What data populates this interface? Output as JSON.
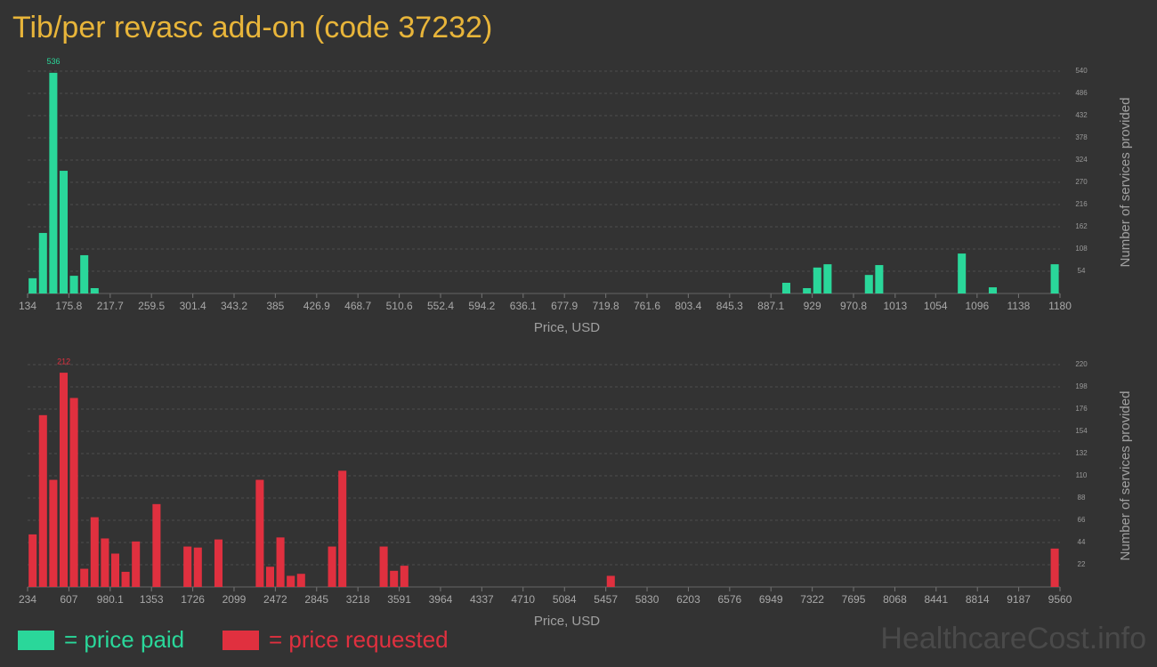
{
  "title": "Tib/per revasc add-on (code 37232)",
  "watermark": "HealthcareCost.info",
  "chart_data": [
    {
      "type": "histogram",
      "name": "= price paid",
      "color": "#2ad79a",
      "xlabel": "Price, USD",
      "ylabel": "Number of services provided",
      "grid": true,
      "bins": [
        134,
        144.46,
        154.92,
        165.38,
        175.84,
        186.3,
        196.76,
        207.22,
        217.68,
        228.14,
        238.6,
        249.06,
        259.52,
        269.98,
        280.44,
        290.9,
        301.36,
        311.82,
        322.28,
        332.74,
        343.2,
        353.66,
        364.12,
        374.58,
        385.04,
        395.5,
        405.96,
        416.42,
        426.88,
        437.34,
        447.8,
        458.26,
        468.72,
        479.18,
        489.64,
        500.1,
        510.56,
        521.02,
        531.48,
        541.94,
        552.4,
        562.86,
        573.32,
        583.78,
        594.24,
        604.7,
        615.16,
        625.62,
        636.08,
        646.54,
        657,
        667.46,
        677.92,
        688.38,
        698.84,
        709.3,
        719.76,
        730.22,
        740.68,
        751.14,
        761.6,
        772.06,
        782.52,
        792.98,
        803.44,
        813.9,
        824.36,
        834.82,
        845.28,
        855.74,
        866.2,
        876.66,
        887.12,
        897.58,
        908.04,
        918.5,
        928.96,
        939.42,
        949.88,
        960.34,
        970.8,
        981.26,
        991.72,
        1002.18,
        1012.64,
        1023.1,
        1033.56,
        1044.02,
        1054.48,
        1064.94,
        1075.4,
        1085.86,
        1096.32,
        1106.78,
        1117.24,
        1127.7,
        1138.16,
        1148.62,
        1159.08,
        1169.54,
        1180
      ],
      "values": [
        37,
        147,
        536,
        298,
        43,
        93,
        13,
        0,
        0,
        0,
        0,
        0,
        0,
        0,
        0,
        0,
        0,
        0,
        0,
        0,
        0,
        0,
        0,
        0,
        0,
        0,
        0,
        0,
        0,
        0,
        0,
        0,
        0,
        0,
        0,
        0,
        0,
        0,
        0,
        0,
        0,
        0,
        0,
        0,
        0,
        0,
        0,
        0,
        0,
        0,
        0,
        0,
        0,
        0,
        0,
        0,
        0,
        0,
        0,
        0,
        0,
        0,
        0,
        0,
        0,
        0,
        0,
        0,
        0,
        0,
        0,
        0,
        0,
        26,
        0,
        13,
        63,
        71,
        0,
        0,
        0,
        45,
        69,
        0,
        0,
        0,
        0,
        0,
        0,
        0,
        97,
        0,
        0,
        15,
        0,
        0,
        0,
        0,
        0,
        71
      ],
      "xlim": [
        134,
        1180
      ],
      "xticks": [
        134,
        175.8,
        217.7,
        259.5,
        301.4,
        343.2,
        385,
        426.9,
        468.7,
        510.6,
        552.4,
        594.2,
        636.1,
        677.9,
        719.8,
        761.6,
        803.4,
        845.3,
        887.1,
        929,
        970.8,
        1013,
        1054,
        1096,
        1138,
        1180
      ],
      "ylim": [
        0,
        540
      ],
      "yticks": [
        54,
        108,
        162,
        216,
        270,
        324,
        378,
        432,
        486,
        540
      ]
    },
    {
      "type": "histogram",
      "name": "= price requested",
      "color": "#e0303f",
      "xlabel": "Price, USD",
      "ylabel": "Number of services provided",
      "grid": true,
      "bins": [
        234,
        327.26,
        420.52,
        513.78,
        607.04,
        700.3,
        793.56,
        886.82,
        980.08,
        1073.34,
        1166.6,
        1259.86,
        1353.12,
        1446.38,
        1539.64,
        1632.9,
        1726.16,
        1819.42,
        1912.68,
        2005.94,
        2099.2,
        2192.46,
        2285.72,
        2378.98,
        2472.24,
        2565.5,
        2658.76,
        2752.02,
        2845.28,
        2938.54,
        3031.8,
        3125.06,
        3218.32,
        3311.58,
        3404.84,
        3498.1,
        3591.36,
        3684.62,
        3777.88,
        3871.14,
        3964.4,
        4057.66,
        4150.92,
        4244.18,
        4337.44,
        4430.7,
        4523.96,
        4617.22,
        4710.48,
        4803.74,
        4897,
        4990.26,
        5083.52,
        5176.78,
        5270.04,
        5363.3,
        5456.56,
        5549.82,
        5643.08,
        5736.34,
        5829.6,
        5922.86,
        6016.12,
        6109.38,
        6202.64,
        6295.9,
        6389.16,
        6482.42,
        6575.68,
        6668.94,
        6762.2,
        6855.46,
        6948.72,
        7041.98,
        7135.24,
        7228.5,
        7321.76,
        7415.02,
        7508.28,
        7601.54,
        7694.8,
        7788.06,
        7881.32,
        7974.58,
        8067.84,
        8161.1,
        8254.36,
        8347.62,
        8440.88,
        8534.14,
        8627.4,
        8720.66,
        8813.92,
        8907.18,
        9000.44,
        9093.7,
        9186.96,
        9280.22,
        9373.48,
        9466.74,
        9560
      ],
      "values": [
        52,
        170,
        106,
        212,
        187,
        18,
        69,
        48,
        33,
        15,
        45,
        0,
        82,
        0,
        0,
        40,
        39,
        0,
        47,
        0,
        0,
        0,
        106,
        20,
        49,
        11,
        13,
        0,
        0,
        40,
        115,
        0,
        0,
        0,
        40,
        16,
        21,
        0,
        0,
        0,
        0,
        0,
        0,
        0,
        0,
        0,
        0,
        0,
        0,
        0,
        0,
        0,
        0,
        0,
        0,
        0,
        11,
        0,
        0,
        0,
        0,
        0,
        0,
        0,
        0,
        0,
        0,
        0,
        0,
        0,
        0,
        0,
        0,
        0,
        0,
        0,
        0,
        0,
        0,
        0,
        0,
        0,
        0,
        0,
        0,
        0,
        0,
        0,
        0,
        0,
        0,
        0,
        0,
        0,
        0,
        0,
        0,
        0,
        0,
        38
      ],
      "xlim": [
        234,
        9560
      ],
      "xticks": [
        234,
        607,
        980.1,
        1353,
        1726,
        2099,
        2472,
        2845,
        3218,
        3591,
        3964,
        4337,
        4710,
        5084,
        5457,
        5830,
        6203,
        6576,
        6949,
        7322,
        7695,
        8068,
        8441,
        8814,
        9187,
        9560
      ],
      "ylim": [
        0,
        220
      ],
      "yticks": [
        22,
        44,
        66,
        88,
        110,
        132,
        154,
        176,
        198,
        220
      ]
    }
  ]
}
